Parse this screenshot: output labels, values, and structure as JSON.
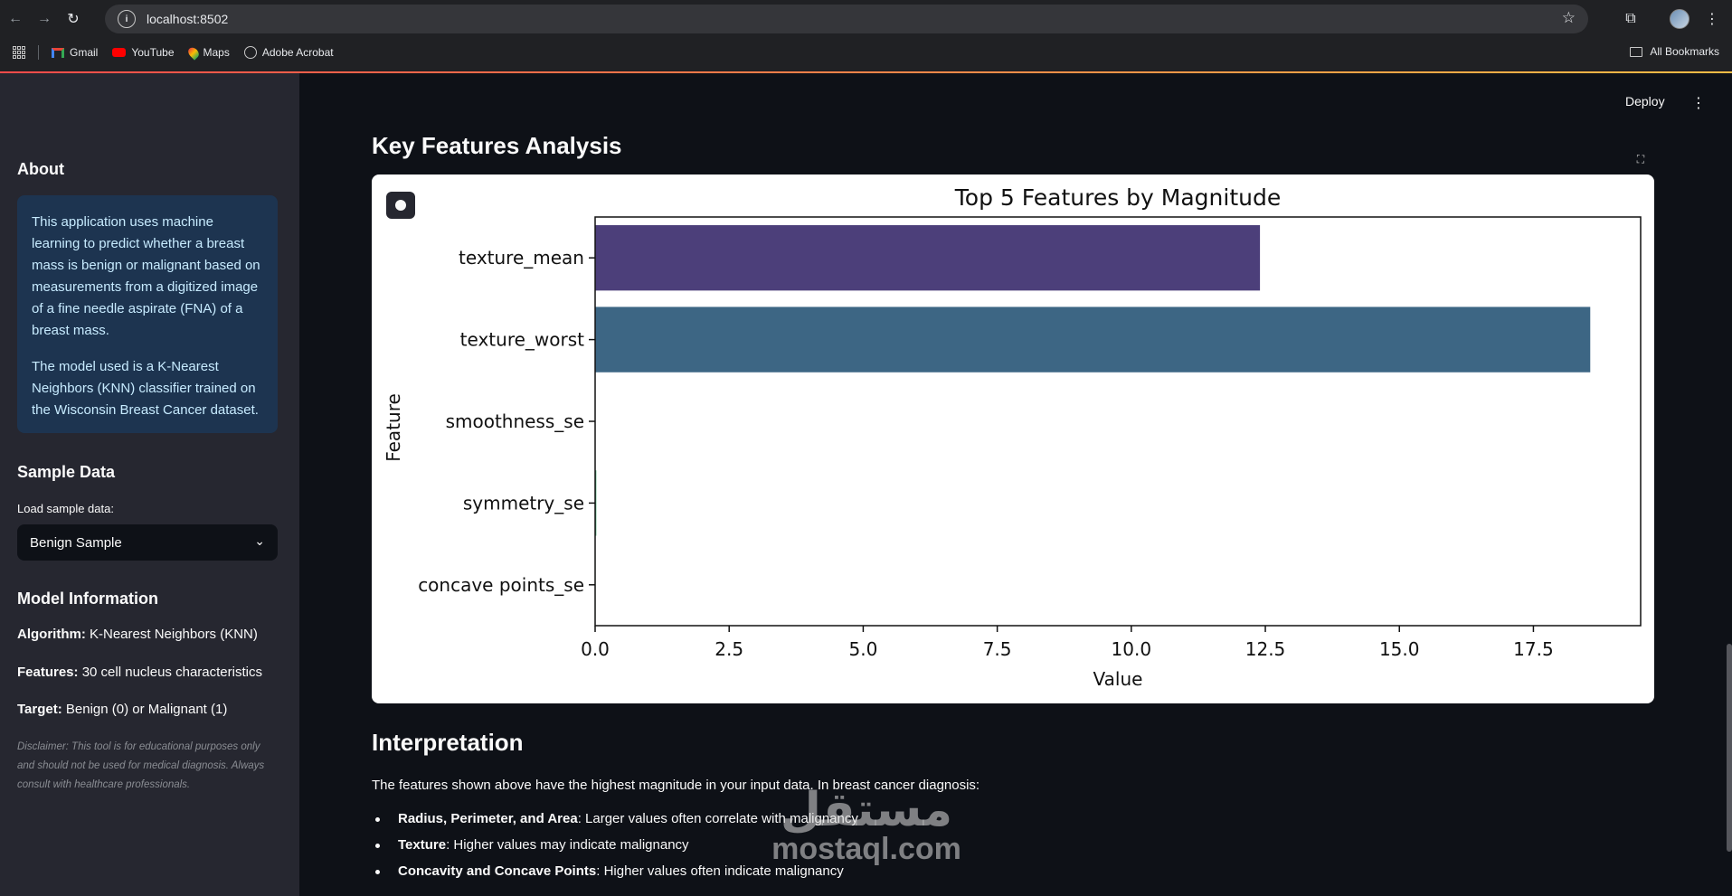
{
  "browser": {
    "url": "localhost:8502",
    "bookmarks": [
      "Gmail",
      "YouTube",
      "Maps",
      "Adobe Acrobat"
    ],
    "all_bookmarks": "All Bookmarks"
  },
  "header": {
    "deploy_label": "Deploy"
  },
  "sidebar": {
    "about_title": "About",
    "about_p1": "This application uses machine learning to predict whether a breast mass is benign or malignant based on measurements from a digitized image of a fine needle aspirate (FNA) of a breast mass.",
    "about_p2": "The model used is a K-Nearest Neighbors (KNN) classifier trained on the Wisconsin Breast Cancer dataset.",
    "sample_title": "Sample Data",
    "sample_label": "Load sample data:",
    "sample_value": "Benign Sample",
    "model_title": "Model Information",
    "algorithm_label": "Algorithm:",
    "algorithm_value": "K-Nearest Neighbors (KNN)",
    "features_label": "Features:",
    "features_value": "30 cell nucleus characteristics",
    "target_label": "Target:",
    "target_value": "Benign (0) or Malignant (1)",
    "disclaimer": "Disclaimer: This tool is for educational purposes only and should not be used for medical diagnosis. Always consult with healthcare professionals."
  },
  "main": {
    "section_title": "Key Features Analysis",
    "interpretation_title": "Interpretation",
    "interpretation_text": "The features shown above have the highest magnitude in your input data. In breast cancer diagnosis:",
    "bullets": [
      {
        "label": "Radius, Perimeter, and Area",
        "text": ": Larger values often correlate with malignancy"
      },
      {
        "label": "Texture",
        "text": ": Higher values may indicate malignancy"
      },
      {
        "label": "Concavity and Concave Points",
        "text": ": Higher values often indicate malignancy"
      }
    ]
  },
  "chart_data": {
    "type": "bar",
    "orientation": "horizontal",
    "title": "Top 5 Features by Magnitude",
    "xlabel": "Value",
    "ylabel": "Feature",
    "categories": [
      "texture_mean",
      "texture_worst",
      "smoothness_se",
      "symmetry_se",
      "concave points_se"
    ],
    "values": [
      12.4,
      18.56,
      0.0065,
      0.0225,
      0.0088
    ],
    "colors": [
      "#4c3f7a",
      "#3d6684",
      "#2a8c8a",
      "#4aaf7a",
      "#a8d657"
    ],
    "xlim": [
      0,
      19.5
    ],
    "xticks": [
      0.0,
      2.5,
      5.0,
      7.5,
      10.0,
      12.5,
      15.0,
      17.5
    ],
    "xtick_labels": [
      "0.0",
      "2.5",
      "5.0",
      "7.5",
      "10.0",
      "12.5",
      "15.0",
      "17.5"
    ]
  },
  "watermark": {
    "arabic": "مستقل",
    "latin": "mostaql.com"
  }
}
